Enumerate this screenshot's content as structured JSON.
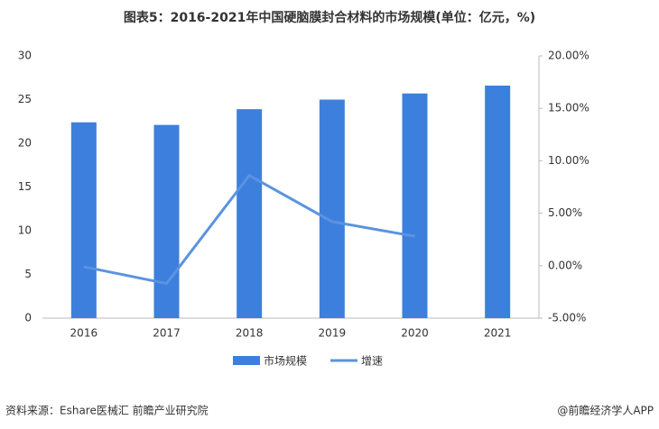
{
  "chart_data": {
    "type": "bar",
    "title": "图表5：2016-2021年中国硬脑膜封合材料的市场规模(单位：亿元，%)",
    "categories": [
      "2016",
      "2017",
      "2018",
      "2019",
      "2020",
      "2021"
    ],
    "series": [
      {
        "name": "市场规模",
        "type": "bar",
        "color": "#3d7fdc",
        "values": [
          22.4,
          22.1,
          23.9,
          25.0,
          25.7,
          26.6
        ]
      },
      {
        "name": "增速",
        "type": "line",
        "axis": "y2",
        "color": "#5b93e0",
        "values": [
          -0.1,
          -1.7,
          8.6,
          4.2,
          2.8,
          null
        ]
      }
    ],
    "ylim": [
      0,
      30
    ],
    "yticks": [
      0,
      5,
      10,
      15,
      20,
      25,
      30
    ],
    "y2lim": [
      -5,
      20
    ],
    "y2ticks": [
      {
        "value": -5,
        "label": "-5.00%"
      },
      {
        "value": 0,
        "label": "0.00%"
      },
      {
        "value": 5,
        "label": "5.00%"
      },
      {
        "value": 10,
        "label": "10.00%"
      },
      {
        "value": 15,
        "label": "15.00%"
      },
      {
        "value": 20,
        "label": "20.00%"
      }
    ],
    "source": "资料来源：Eshare医械汇 前瞻产业研究院",
    "credit": "@前瞻经济学人APP"
  }
}
